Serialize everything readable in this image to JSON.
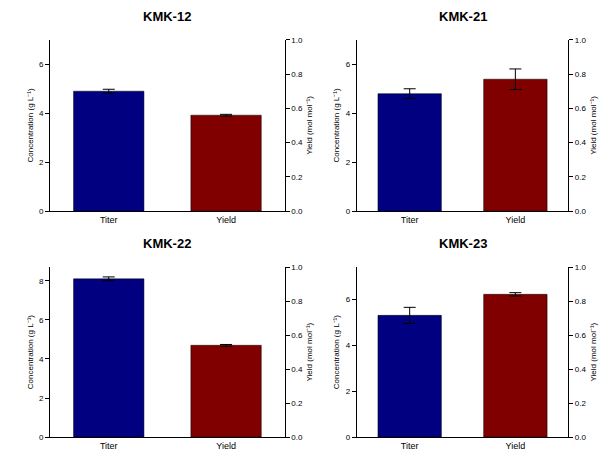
{
  "chart_data": [
    {
      "type": "bar",
      "title": "KMK-12",
      "categories": [
        "Titer",
        "Yield"
      ],
      "ylabel": "Concentration (g L⁻¹)",
      "y2label": "Yield (mol mol⁻¹)",
      "ylim": [
        0,
        7
      ],
      "yticks": [
        0,
        2,
        4,
        6
      ],
      "y2lim": [
        0,
        1
      ],
      "y2ticks": [
        {
          "value": 0,
          "label": "0.0"
        },
        {
          "value": 0.2,
          "label": "0.2"
        },
        {
          "value": 0.4,
          "label": "0.4"
        },
        {
          "value": 0.6,
          "label": "0.6"
        },
        {
          "value": 0.8,
          "label": "0.8"
        },
        {
          "value": 1,
          "label": "1.0"
        }
      ],
      "series": [
        {
          "name": "Titer",
          "color": "#000080",
          "values": [
            4.9,
            null
          ],
          "errors": [
            0.08,
            null
          ]
        },
        {
          "name": "Yield",
          "color": "#800000",
          "axis": "y2",
          "values": [
            null,
            0.56
          ],
          "errors": [
            null,
            0.005
          ]
        }
      ]
    },
    {
      "type": "bar",
      "title": "KMK-21",
      "categories": [
        "Titer",
        "Yield"
      ],
      "ylabel": "Concentration (g L⁻¹)",
      "y2label": "Yield (mol mol⁻¹)",
      "ylim": [
        0,
        7
      ],
      "yticks": [
        0,
        2,
        4,
        6
      ],
      "y2lim": [
        0,
        1
      ],
      "y2ticks": [
        {
          "value": 0,
          "label": "0.0"
        },
        {
          "value": 0.2,
          "label": "0.2"
        },
        {
          "value": 0.4,
          "label": "0.4"
        },
        {
          "value": 0.6,
          "label": "0.6"
        },
        {
          "value": 0.8,
          "label": "0.8"
        },
        {
          "value": 1,
          "label": "1.0"
        }
      ],
      "series": [
        {
          "name": "Titer",
          "color": "#000080",
          "values": [
            4.8,
            null
          ],
          "errors": [
            0.2,
            null
          ]
        },
        {
          "name": "Yield",
          "color": "#800000",
          "axis": "y2",
          "values": [
            null,
            0.77
          ],
          "errors": [
            null,
            0.06
          ]
        }
      ]
    },
    {
      "type": "bar",
      "title": "KMK-22",
      "categories": [
        "Titer",
        "Yield"
      ],
      "ylabel": "Concentration (g L⁻¹)",
      "y2label": "Yield (mol mol⁻¹)",
      "ylim": [
        0,
        8.7
      ],
      "yticks": [
        0,
        2,
        4,
        6,
        8
      ],
      "y2lim": [
        0,
        1
      ],
      "y2ticks": [
        {
          "value": 0,
          "label": "0.0"
        },
        {
          "value": 0.2,
          "label": "0.2"
        },
        {
          "value": 0.4,
          "label": "0.4"
        },
        {
          "value": 0.6,
          "label": "0.6"
        },
        {
          "value": 0.8,
          "label": "0.8"
        },
        {
          "value": 1,
          "label": "1.0"
        }
      ],
      "series": [
        {
          "name": "Titer",
          "color": "#000080",
          "values": [
            8.1,
            null
          ],
          "errors": [
            0.1,
            null
          ]
        },
        {
          "name": "Yield",
          "color": "#800000",
          "axis": "y2",
          "values": [
            null,
            0.54
          ],
          "errors": [
            null,
            0.005
          ]
        }
      ]
    },
    {
      "type": "bar",
      "title": "KMK-23",
      "categories": [
        "Titer",
        "Yield"
      ],
      "ylabel": "Concentration (g L⁻¹)",
      "y2label": "Yield (mol mol⁻¹)",
      "ylim": [
        0,
        7.4
      ],
      "yticks": [
        0,
        2,
        4,
        6
      ],
      "y2lim": [
        0,
        1
      ],
      "y2ticks": [
        {
          "value": 0,
          "label": "0.0"
        },
        {
          "value": 0.2,
          "label": "0.2"
        },
        {
          "value": 0.4,
          "label": "0.4"
        },
        {
          "value": 0.6,
          "label": "0.6"
        },
        {
          "value": 0.8,
          "label": "0.8"
        },
        {
          "value": 1,
          "label": "1.0"
        }
      ],
      "series": [
        {
          "name": "Titer",
          "color": "#000080",
          "values": [
            5.3,
            null
          ],
          "errors": [
            0.35,
            null
          ]
        },
        {
          "name": "Yield",
          "color": "#800000",
          "axis": "y2",
          "values": [
            null,
            0.84
          ],
          "errors": [
            null,
            0.01
          ]
        }
      ]
    }
  ]
}
